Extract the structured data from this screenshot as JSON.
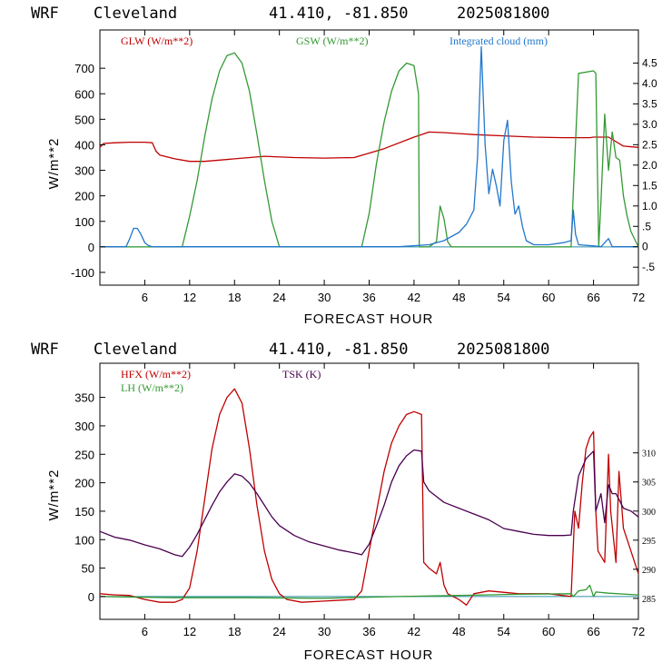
{
  "chart_data": [
    {
      "type": "line",
      "header": {
        "model": "WRF",
        "station": "Cleveland",
        "coords": "41.410, -81.850",
        "init": "2025081800"
      },
      "xlabel": "FORECAST HOUR",
      "ylabel": "W/m**2",
      "xlim": [
        0,
        72
      ],
      "ylim": [
        -150,
        850
      ],
      "x_ticks": [
        6,
        12,
        18,
        24,
        30,
        36,
        42,
        48,
        54,
        60,
        66,
        72
      ],
      "y_ticks": [
        -100,
        0,
        100,
        200,
        300,
        400,
        500,
        600,
        700
      ],
      "y2lim": [
        -0.94,
        5.31
      ],
      "y2_ticks": [
        "-.5",
        "0",
        ".5",
        "1.0",
        "1.5",
        "2.0",
        "2.5",
        "3.0",
        "3.5",
        "4.0",
        "4.5"
      ],
      "grid": false,
      "legend_position": "top",
      "series": [
        {
          "name": "GLW (W/m**2)",
          "color": "#c00000",
          "axis": "left",
          "x": [
            0,
            0.5,
            2,
            4,
            6,
            7,
            7.5,
            8,
            10,
            12,
            14,
            18,
            22,
            26,
            30,
            34,
            38,
            42,
            43,
            44,
            46,
            50,
            54,
            58,
            62,
            64,
            65.5,
            66,
            68,
            70,
            72
          ],
          "y": [
            390,
            405,
            408,
            410,
            410,
            408,
            375,
            360,
            345,
            335,
            335,
            345,
            355,
            350,
            348,
            350,
            385,
            430,
            440,
            450,
            448,
            440,
            435,
            430,
            428,
            428,
            428,
            430,
            430,
            395,
            390
          ]
        },
        {
          "name": "GSW (W/m**2)",
          "color": "#339933",
          "axis": "left",
          "x": [
            0,
            11,
            12,
            13,
            14,
            15,
            16,
            17,
            18,
            19,
            20,
            21,
            22,
            23,
            24,
            35,
            36,
            37,
            38,
            39,
            40,
            41,
            42,
            42.6,
            42.7,
            44,
            45,
            45.5,
            46,
            46.5,
            47,
            63,
            63.3,
            64,
            66,
            66.3,
            66.7,
            67,
            67.5,
            68,
            68.5,
            69,
            69.5,
            70,
            70.5,
            71,
            72
          ],
          "y": [
            0,
            0,
            120,
            260,
            430,
            580,
            690,
            750,
            760,
            720,
            610,
            440,
            260,
            100,
            0,
            0,
            130,
            330,
            490,
            610,
            690,
            720,
            710,
            600,
            0,
            0,
            20,
            160,
            110,
            20,
            0,
            0,
            210,
            680,
            690,
            680,
            0,
            180,
            520,
            300,
            450,
            350,
            340,
            200,
            120,
            60,
            0
          ]
        },
        {
          "name": "Integrated cloud (mm)",
          "color": "#2277cc",
          "axis": "right",
          "x": [
            0,
            3.5,
            4,
            4.5,
            5,
            5.5,
            6,
            6.5,
            7,
            40,
            44,
            46,
            48,
            49,
            50,
            50.5,
            51,
            51.5,
            52,
            52.5,
            53,
            53.5,
            54,
            54.5,
            55,
            55.5,
            56,
            56.5,
            57,
            58,
            60,
            62,
            63,
            63.3,
            63.6,
            64,
            66,
            67,
            68,
            68.5,
            72
          ],
          "y": [
            0,
            0,
            0.2,
            0.45,
            0.45,
            0.3,
            0.1,
            0.03,
            0,
            0,
            0.05,
            0.15,
            0.35,
            0.55,
            0.9,
            2.2,
            4.9,
            2.5,
            1.3,
            1.9,
            1.5,
            1.0,
            2.6,
            3.1,
            1.6,
            0.8,
            1.0,
            0.5,
            0.15,
            0.05,
            0.05,
            0.1,
            0.15,
            0.9,
            0.3,
            0.05,
            0.02,
            0,
            0.2,
            0,
            0
          ]
        }
      ]
    },
    {
      "type": "line",
      "header": {
        "model": "WRF",
        "station": "Cleveland",
        "coords": "41.410, -81.850",
        "init": "2025081800"
      },
      "xlabel": "FORECAST HOUR",
      "ylabel": "W/m**2",
      "xlim": [
        0,
        72
      ],
      "ylim": [
        -40,
        410
      ],
      "x_ticks": [
        6,
        12,
        18,
        24,
        30,
        36,
        42,
        48,
        54,
        60,
        66,
        72
      ],
      "y_ticks": [
        0,
        50,
        100,
        150,
        200,
        250,
        300,
        350
      ],
      "y2lim": [
        281.4,
        325.4
      ],
      "y2_ticks": [
        285,
        290,
        295,
        300,
        305,
        310
      ],
      "grid": false,
      "legend_position": "top",
      "series": [
        {
          "name": "HFX (W/m**2)",
          "color": "#c00000",
          "axis": "left",
          "x": [
            0,
            2,
            4,
            6,
            8,
            10,
            11,
            12,
            13,
            14,
            15,
            16,
            17,
            18,
            19,
            20,
            21,
            22,
            23,
            24,
            25,
            27,
            30,
            34,
            35,
            36,
            37,
            38,
            39,
            40,
            41,
            42,
            43,
            43.3,
            44,
            45,
            45.5,
            46,
            46.5,
            48,
            49,
            50,
            52,
            56,
            60,
            63,
            63.5,
            64,
            64.5,
            65,
            65.5,
            66,
            66.3,
            66.6,
            67.5,
            68,
            68.3,
            69,
            69.4,
            70,
            71,
            72
          ],
          "y": [
            5,
            3,
            2,
            -5,
            -10,
            -10,
            -5,
            15,
            80,
            170,
            260,
            320,
            350,
            365,
            340,
            260,
            160,
            80,
            30,
            5,
            -5,
            -10,
            -8,
            -5,
            10,
            80,
            150,
            220,
            270,
            300,
            320,
            325,
            320,
            60,
            50,
            40,
            60,
            20,
            5,
            -5,
            -15,
            5,
            10,
            5,
            5,
            0,
            150,
            120,
            200,
            260,
            280,
            290,
            150,
            80,
            60,
            250,
            150,
            60,
            220,
            120,
            80,
            40
          ]
        },
        {
          "name": "LH (W/m**2)",
          "color": "#339933",
          "axis": "left",
          "x": [
            0,
            10,
            20,
            30,
            40,
            48,
            56,
            63,
            63.3,
            64,
            65,
            65.5,
            66,
            66.3,
            68,
            72
          ],
          "y": [
            0,
            -2,
            -2,
            -3,
            0,
            2,
            4,
            5,
            0,
            10,
            12,
            20,
            0,
            8,
            6,
            3
          ]
        },
        {
          "name": "TSK (K)",
          "color": "#4b0050",
          "axis": "right",
          "x": [
            0,
            2,
            4,
            6,
            8,
            10,
            11,
            12,
            13,
            14,
            15,
            16,
            17,
            18,
            19,
            20,
            21,
            22,
            23,
            24,
            26,
            28,
            30,
            32,
            34,
            35,
            36,
            37,
            38,
            39,
            40,
            41,
            42,
            43,
            43.3,
            44,
            45,
            46,
            48,
            50,
            52,
            54,
            56,
            58,
            60,
            62,
            63,
            63.3,
            64,
            65,
            66,
            66.3,
            67,
            67.5,
            68,
            68.5,
            69,
            70,
            71,
            72
          ],
          "y": [
            296.5,
            295.5,
            295,
            294.2,
            293.5,
            292.5,
            292.2,
            293.8,
            296,
            298.5,
            301,
            303.3,
            305,
            306.4,
            306,
            304.8,
            303,
            301,
            299,
            297.5,
            295.8,
            294.7,
            294,
            293.3,
            292.8,
            292.5,
            294.3,
            297.5,
            301,
            305,
            307.8,
            309.5,
            310.5,
            310.3,
            305,
            303.5,
            302.5,
            301.5,
            300.5,
            299.5,
            298.5,
            297,
            296.5,
            296,
            295.8,
            295.8,
            295.9,
            300,
            306,
            309,
            310.3,
            300,
            303,
            298,
            304.5,
            303,
            303,
            300.5,
            300,
            299
          ]
        }
      ]
    }
  ]
}
